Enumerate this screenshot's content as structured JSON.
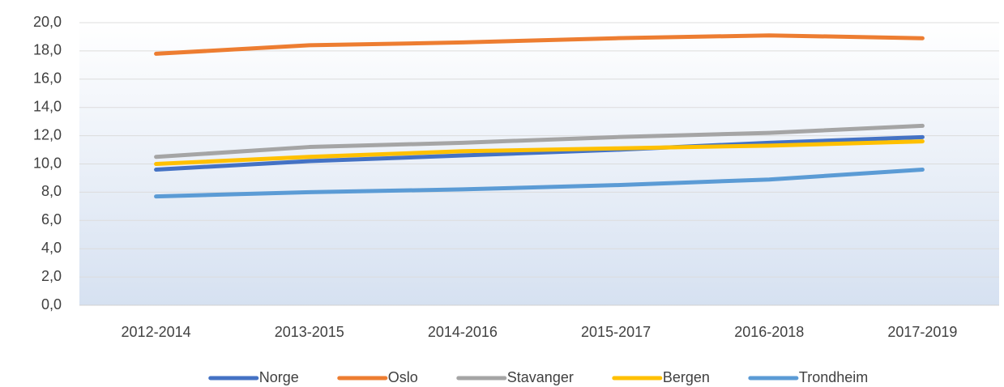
{
  "chart_data": {
    "type": "line",
    "categories": [
      "2012-2014",
      "2013-2015",
      "2014-2016",
      "2015-2017",
      "2016-2018",
      "2017-2019"
    ],
    "series": [
      {
        "name": "Norge",
        "color": "#4472c4",
        "values": [
          9.6,
          10.2,
          10.6,
          11.0,
          11.5,
          11.9
        ]
      },
      {
        "name": "Oslo",
        "color": "#ed7d31",
        "values": [
          17.8,
          18.4,
          18.6,
          18.9,
          19.1,
          18.9
        ]
      },
      {
        "name": "Stavanger",
        "color": "#a5a5a5",
        "values": [
          10.5,
          11.2,
          11.5,
          11.9,
          12.2,
          12.7
        ]
      },
      {
        "name": "Bergen",
        "color": "#ffc000",
        "values": [
          10.0,
          10.5,
          10.9,
          11.1,
          11.3,
          11.6
        ]
      },
      {
        "name": "Trondheim",
        "color": "#5b9bd5",
        "values": [
          7.7,
          8.0,
          8.2,
          8.5,
          8.9,
          9.6
        ]
      }
    ],
    "ylim": [
      0,
      20
    ],
    "yticks": [
      {
        "value": 0,
        "label": "0,0"
      },
      {
        "value": 2,
        "label": "2,0"
      },
      {
        "value": 4,
        "label": "4,0"
      },
      {
        "value": 6,
        "label": "6,0"
      },
      {
        "value": 8,
        "label": "8,0"
      },
      {
        "value": 10,
        "label": "10,0"
      },
      {
        "value": 12,
        "label": "12,0"
      },
      {
        "value": 14,
        "label": "14,0"
      },
      {
        "value": 16,
        "label": "16,0"
      },
      {
        "value": 18,
        "label": "18,0"
      },
      {
        "value": 20,
        "label": "20,0"
      }
    ],
    "grid": true,
    "legend": "bottom"
  }
}
